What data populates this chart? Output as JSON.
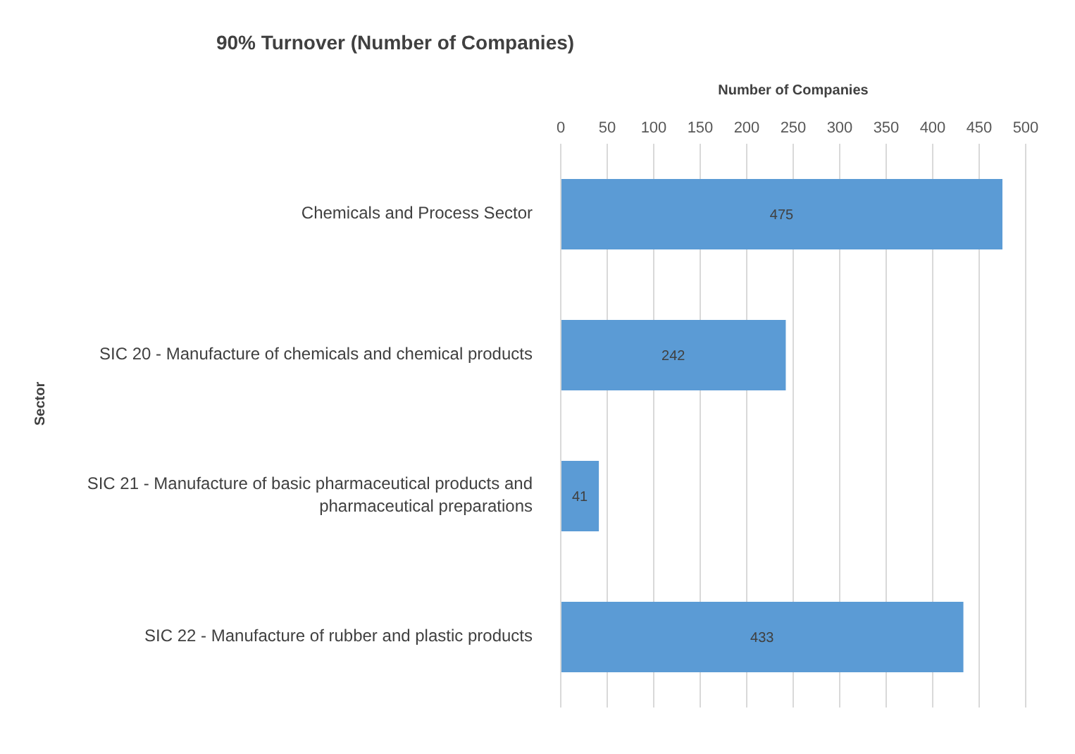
{
  "chart_data": {
    "type": "bar",
    "orientation": "horizontal",
    "title": "90% Turnover (Number of Companies)",
    "xlabel": "Number of Companies",
    "ylabel": "Sector",
    "categories": [
      "Chemicals and Process Sector",
      "SIC 20 - Manufacture of chemicals and chemical products",
      "SIC 21 - Manufacture of basic pharmaceutical products and pharmaceutical preparations",
      "SIC 22 - Manufacture of rubber and plastic products"
    ],
    "values": [
      475,
      242,
      41,
      433
    ],
    "color": "#5b9bd5",
    "xlim": [
      0,
      500
    ],
    "xticks": [
      0,
      50,
      100,
      150,
      200,
      250,
      300,
      350,
      400,
      450,
      500
    ],
    "grid": "x",
    "data_labels": true
  }
}
